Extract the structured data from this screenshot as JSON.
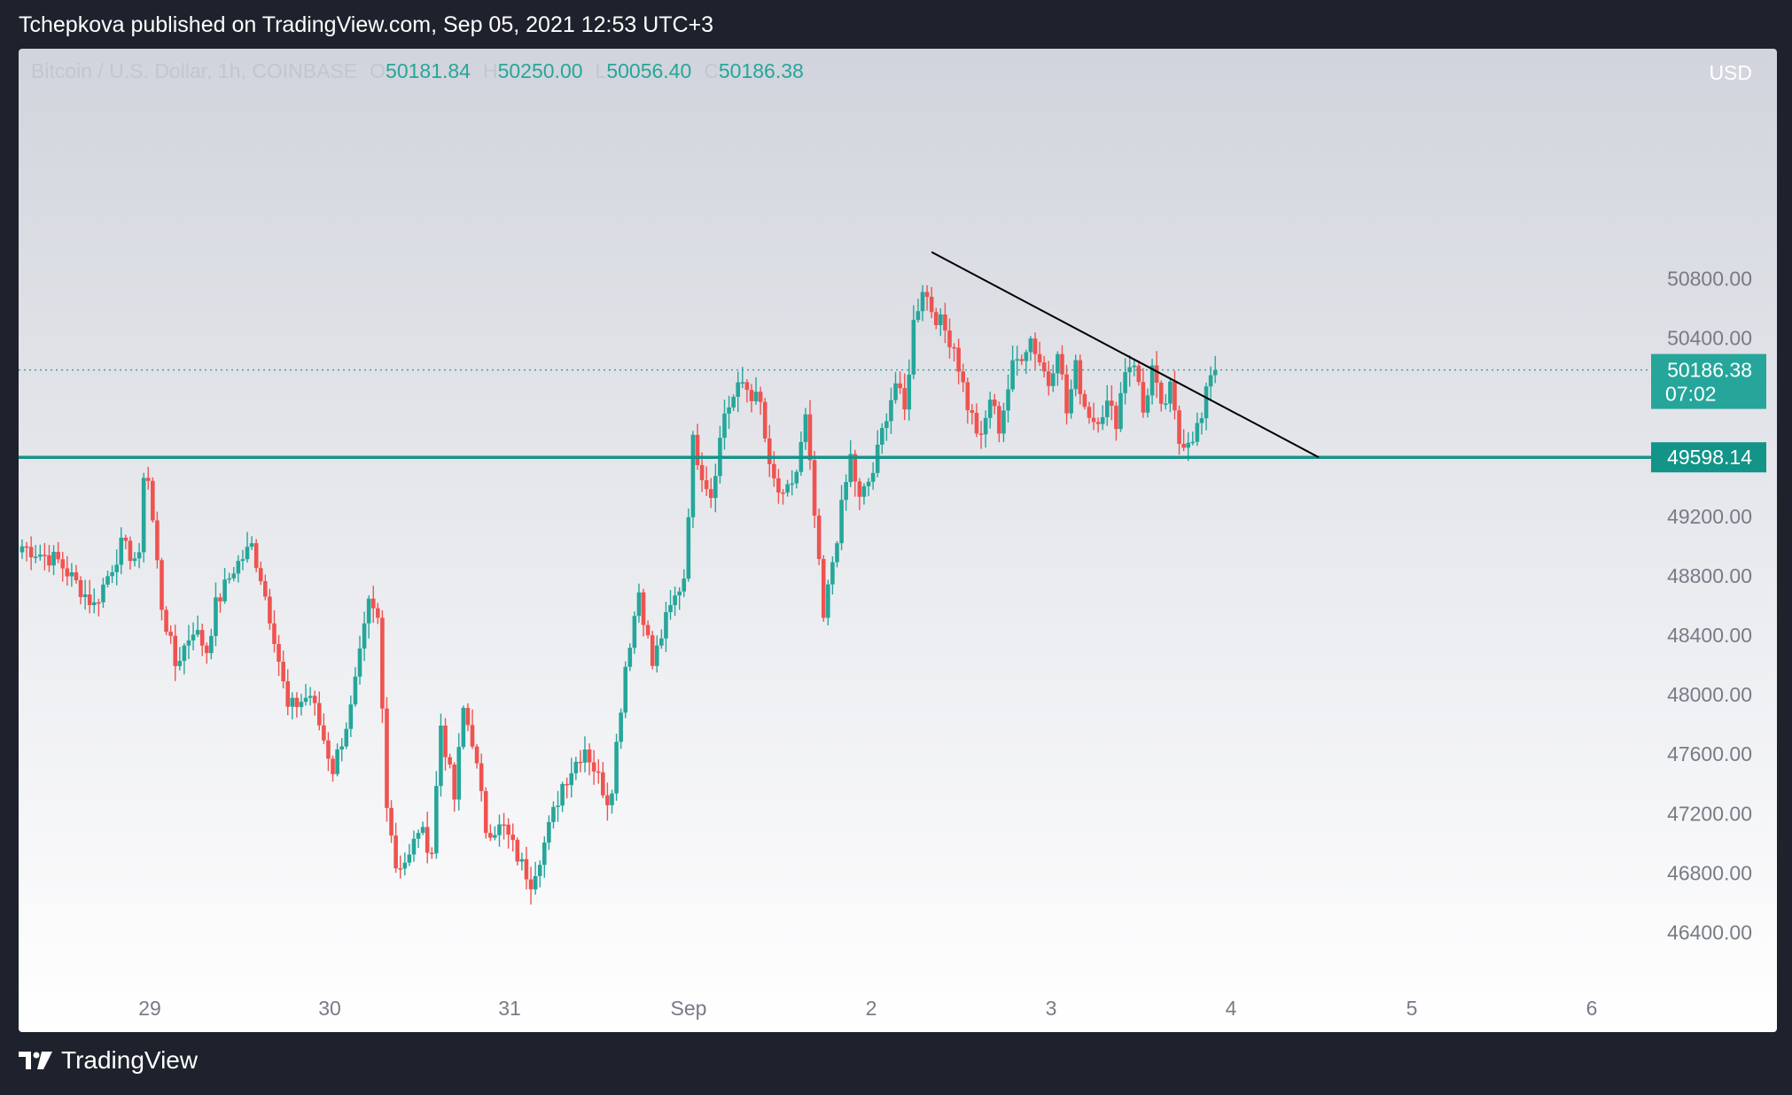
{
  "header": {
    "publish_line": "Tchepkova published on TradingView.com, Sep 05, 2021 12:53 UTC+3"
  },
  "legend": {
    "symbol": "Bitcoin / U.S. Dollar, 1h, COINBASE",
    "o_label": "O",
    "o_value": "50181.84",
    "h_label": "H",
    "h_value": "50250.00",
    "l_label": "L",
    "l_value": "50056.40",
    "c_label": "C",
    "c_value": "50186.38"
  },
  "currency": "USD",
  "footer": {
    "brand": "TradingView"
  },
  "colors": {
    "up": "#26a69a",
    "down": "#ef5350",
    "support_line": "#139489",
    "trend_line": "#000000",
    "axis_text": "#787b86",
    "bg_top": "#d1d4dc",
    "bg_bottom": "#ffffff"
  },
  "chart_data": {
    "type": "candlestick",
    "symbol": "Bitcoin / U.S. Dollar",
    "interval": "1h",
    "exchange": "COINBASE",
    "ylim": [
      46200,
      51200
    ],
    "y_ticks": [
      46400,
      46800,
      47200,
      47600,
      48000,
      48400,
      48800,
      49200,
      50400,
      50800
    ],
    "y_tick_labels": [
      "46400.00",
      "46800.00",
      "47200.00",
      "47600.00",
      "48000.00",
      "48400.00",
      "48800.00",
      "49200.00",
      "50400.00",
      "50800.00"
    ],
    "x_ticks": [
      "29",
      "30",
      "31",
      "Sep",
      "2",
      "3",
      "4",
      "5",
      "6"
    ],
    "candle_anchors": [
      [
        0,
        49000
      ],
      [
        8,
        48900
      ],
      [
        16,
        48600
      ],
      [
        22,
        49000
      ],
      [
        26,
        48900
      ],
      [
        27,
        49500
      ],
      [
        28,
        49450
      ],
      [
        31,
        48600
      ],
      [
        34,
        48200
      ],
      [
        38,
        48450
      ],
      [
        41,
        48300
      ],
      [
        43,
        48600
      ],
      [
        47,
        48850
      ],
      [
        51,
        49000
      ],
      [
        53,
        48800
      ],
      [
        56,
        48400
      ],
      [
        59,
        47900
      ],
      [
        64,
        48000
      ],
      [
        69,
        47500
      ],
      [
        73,
        47900
      ],
      [
        77,
        48600
      ],
      [
        79,
        48500
      ],
      [
        81,
        47300
      ],
      [
        83,
        46850
      ],
      [
        86,
        46900
      ],
      [
        88,
        47100
      ],
      [
        91,
        46950
      ],
      [
        93,
        47800
      ],
      [
        96,
        47300
      ],
      [
        98,
        47900
      ],
      [
        100,
        47700
      ],
      [
        103,
        47100
      ],
      [
        107,
        47100
      ],
      [
        111,
        46850
      ],
      [
        113,
        46750
      ],
      [
        116,
        47000
      ],
      [
        120,
        47400
      ],
      [
        125,
        47650
      ],
      [
        130,
        47300
      ],
      [
        131,
        47400
      ],
      [
        134,
        48200
      ],
      [
        137,
        48700
      ],
      [
        140,
        48200
      ],
      [
        143,
        48500
      ],
      [
        147,
        48800
      ],
      [
        149,
        49700
      ],
      [
        151,
        49500
      ],
      [
        153,
        49350
      ],
      [
        156,
        49900
      ],
      [
        160,
        50100
      ],
      [
        164,
        49950
      ],
      [
        166,
        49500
      ],
      [
        169,
        49300
      ],
      [
        172,
        49500
      ],
      [
        174,
        49850
      ],
      [
        176,
        49200
      ],
      [
        178,
        48500
      ],
      [
        180,
        48900
      ],
      [
        184,
        49600
      ],
      [
        186,
        49300
      ],
      [
        189,
        49500
      ],
      [
        192,
        49900
      ],
      [
        194,
        50100
      ],
      [
        196,
        49900
      ],
      [
        198,
        50500
      ],
      [
        200,
        50750
      ],
      [
        202,
        50600
      ],
      [
        204,
        50500
      ],
      [
        207,
        50350
      ],
      [
        210,
        49950
      ],
      [
        213,
        49700
      ],
      [
        215,
        50000
      ],
      [
        217,
        49800
      ],
      [
        220,
        50200
      ],
      [
        224,
        50400
      ],
      [
        226,
        50250
      ],
      [
        228,
        50100
      ],
      [
        230,
        50350
      ],
      [
        232,
        49900
      ],
      [
        234,
        50200
      ],
      [
        236,
        49950
      ],
      [
        238,
        49850
      ],
      [
        241,
        49950
      ],
      [
        243,
        49850
      ],
      [
        245,
        50200
      ],
      [
        247,
        50250
      ],
      [
        249,
        49900
      ],
      [
        251,
        50200
      ],
      [
        253,
        49900
      ],
      [
        255,
        50050
      ],
      [
        257,
        49700
      ],
      [
        260,
        49750
      ],
      [
        262,
        49850
      ],
      [
        264,
        50180
      ],
      [
        265,
        50186.38
      ]
    ],
    "last_price": 50186.38,
    "last_price_label": "50186.38",
    "countdown": "07:02",
    "support_level": 49598.14,
    "support_label": "49598.14",
    "trendline": {
      "from": [
        202,
        50980
      ],
      "to": [
        288,
        49598.14
      ]
    },
    "candle_count": 266,
    "grid": false
  }
}
